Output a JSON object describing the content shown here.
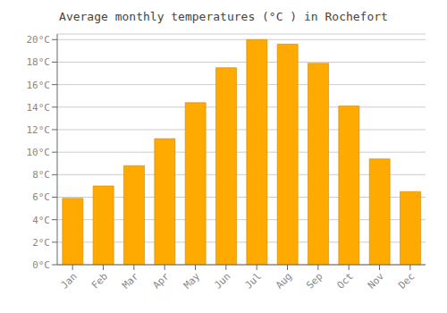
{
  "chart_data": {
    "type": "bar",
    "title": "Average monthly temperatures (°C ) in Rochefort",
    "categories": [
      "Jan",
      "Feb",
      "Mar",
      "Apr",
      "May",
      "Jun",
      "Jul",
      "Aug",
      "Sep",
      "Oct",
      "Nov",
      "Dec"
    ],
    "values": [
      5.9,
      7.0,
      8.8,
      11.2,
      14.4,
      17.5,
      20.0,
      19.6,
      17.9,
      14.1,
      9.4,
      6.5
    ],
    "color": "#FFAA00",
    "ylim": [
      0,
      20.5
    ],
    "yticks": [
      {
        "value": 0,
        "label": "0°C"
      },
      {
        "value": 2,
        "label": "2°C"
      },
      {
        "value": 4,
        "label": "4°C"
      },
      {
        "value": 6,
        "label": "6°C"
      },
      {
        "value": 8,
        "label": "8°C"
      },
      {
        "value": 10,
        "label": "10°C"
      },
      {
        "value": 12,
        "label": "12°C"
      },
      {
        "value": 14,
        "label": "14°C"
      },
      {
        "value": 16,
        "label": "16°C"
      },
      {
        "value": 18,
        "label": "18°C"
      },
      {
        "value": 20,
        "label": "20°C"
      }
    ],
    "grid": true
  }
}
